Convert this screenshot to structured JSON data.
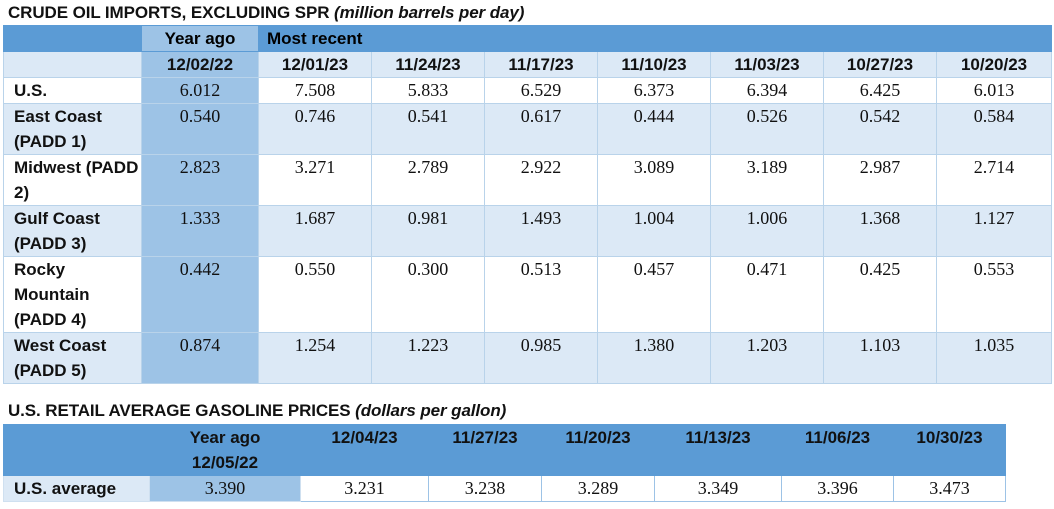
{
  "imports": {
    "title": "CRUDE OIL IMPORTS, EXCLUDING SPR",
    "unit": "(million barrels per day)",
    "year_ago_label": "Year ago",
    "most_recent_label": "Most recent",
    "dates": [
      "12/02/22",
      "12/01/23",
      "11/24/23",
      "11/17/23",
      "11/10/23",
      "11/03/23",
      "10/27/23",
      "10/20/23"
    ],
    "rows": [
      {
        "label": "U.S.",
        "values": [
          "6.012",
          "7.508",
          "5.833",
          "6.529",
          "6.373",
          "6.394",
          "6.425",
          "6.013"
        ]
      },
      {
        "label": "East Coast (PADD 1)",
        "values": [
          "0.540",
          "0.746",
          "0.541",
          "0.617",
          "0.444",
          "0.526",
          "0.542",
          "0.584"
        ]
      },
      {
        "label": "Midwest (PADD 2)",
        "values": [
          "2.823",
          "3.271",
          "2.789",
          "2.922",
          "3.089",
          "3.189",
          "2.987",
          "2.714"
        ]
      },
      {
        "label": "Gulf Coast (PADD 3)",
        "values": [
          "1.333",
          "1.687",
          "0.981",
          "1.493",
          "1.004",
          "1.006",
          "1.368",
          "1.127"
        ]
      },
      {
        "label": "Rocky Mountain (PADD 4)",
        "values": [
          "0.442",
          "0.550",
          "0.300",
          "0.513",
          "0.457",
          "0.471",
          "0.425",
          "0.553"
        ]
      },
      {
        "label": "West Coast (PADD 5)",
        "values": [
          "0.874",
          "1.254",
          "1.223",
          "0.985",
          "1.380",
          "1.203",
          "1.103",
          "1.035"
        ]
      }
    ]
  },
  "gasoline": {
    "title": "U.S. RETAIL AVERAGE GASOLINE PRICES",
    "unit": "(dollars per gallon)",
    "year_ago_label": "Year ago",
    "year_ago_date": "12/05/22",
    "dates": [
      "12/04/23",
      "11/27/23",
      "11/20/23",
      "11/13/23",
      "11/06/23",
      "10/30/23"
    ],
    "row_label": "U.S. average",
    "year_ago_value": "3.390",
    "values": [
      "3.231",
      "3.238",
      "3.289",
      "3.349",
      "3.396",
      "3.473"
    ]
  }
}
